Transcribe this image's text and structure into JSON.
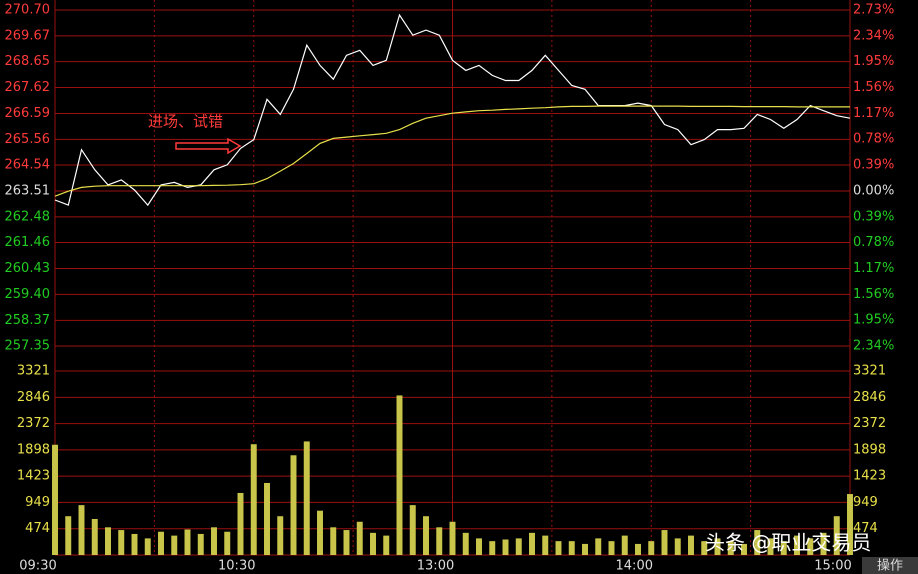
{
  "chart_data": [
    {
      "type": "line",
      "ylim": [
        257.35,
        270.7
      ],
      "yticks": [
        {
          "value": 270.7,
          "label": "270.70"
        },
        269.67,
        268.65,
        267.62,
        266.59,
        265.56,
        264.54,
        263.51,
        262.48,
        261.46,
        {
          "value": 260.43,
          "label": "260.43"
        },
        {
          "value": 259.4,
          "label": "259.40"
        },
        258.37,
        257.35
      ],
      "y2lim": [
        -2.34,
        2.73
      ],
      "y2ticks": [
        {
          "value": 2.73,
          "label": "2.73%"
        },
        {
          "value": 2.34,
          "label": "2.34%"
        },
        {
          "value": 1.95,
          "label": "1.95%"
        },
        {
          "value": 1.56,
          "label": "1.56%"
        },
        {
          "value": 1.17,
          "label": "1.17%"
        },
        {
          "value": 0.78,
          "label": "0.78%"
        },
        {
          "value": 0.39,
          "label": "0.39%"
        },
        {
          "value": 0,
          "label": "0.00%"
        },
        {
          "value": -0.39,
          "label": "0.39%"
        },
        {
          "value": -0.78,
          "label": "0.78%"
        },
        {
          "value": -1.17,
          "label": "1.17%"
        },
        {
          "value": -1.56,
          "label": "1.56%"
        },
        {
          "value": -1.95,
          "label": "1.95%"
        },
        {
          "value": -2.34,
          "label": "2.34%"
        }
      ],
      "up_color": "#ff3b3b",
      "down_color": "#22cc22",
      "flat_color": "#dddddd",
      "annotation": "进场、试错",
      "series": [
        {
          "color": "#ffffff",
          "values": [
            263.15,
            262.95,
            265.15,
            264.35,
            263.75,
            263.95,
            263.55,
            262.95,
            263.75,
            263.85,
            263.65,
            263.75,
            264.35,
            264.55,
            265.2,
            265.55,
            267.15,
            266.55,
            267.55,
            269.3,
            268.5,
            267.95,
            268.9,
            269.1,
            268.5,
            268.7,
            270.5,
            269.7,
            269.9,
            269.7,
            268.7,
            268.3,
            268.5,
            268.1,
            267.9,
            267.9,
            268.3,
            268.9,
            268.3,
            267.7,
            267.55,
            266.9,
            266.9,
            266.9,
            267.0,
            266.9,
            266.15,
            265.95,
            265.35,
            265.55,
            265.95,
            265.95,
            266.0,
            266.55,
            266.35,
            266.0,
            266.35,
            266.9,
            266.7,
            266.5,
            266.4
          ]
        },
        {
          "color": "#e8e04a",
          "values": [
            263.3,
            263.5,
            263.65,
            263.7,
            263.72,
            263.72,
            263.72,
            263.72,
            263.72,
            263.72,
            263.72,
            263.72,
            263.73,
            263.74,
            263.76,
            263.8,
            264.0,
            264.3,
            264.6,
            265.0,
            265.4,
            265.6,
            265.65,
            265.7,
            265.75,
            265.8,
            265.95,
            266.2,
            266.4,
            266.5,
            266.6,
            266.65,
            266.7,
            266.72,
            266.75,
            266.77,
            266.8,
            266.82,
            266.85,
            266.87,
            266.87,
            266.88,
            266.88,
            266.88,
            266.88,
            266.88,
            266.88,
            266.88,
            266.87,
            266.87,
            266.87,
            266.87,
            266.86,
            266.86,
            266.86,
            266.86,
            266.85,
            266.85,
            266.85,
            266.85,
            266.85
          ]
        }
      ]
    },
    {
      "type": "bar",
      "ylim": [
        0,
        3321
      ],
      "yticks": [
        3321,
        2846,
        2372,
        1898,
        1423,
        949,
        474
      ],
      "color": "#c9c54a",
      "tick_color": "#e8e04a",
      "categories": [
        "09:30",
        null,
        null,
        null,
        null,
        null,
        null,
        null,
        null,
        null,
        null,
        null,
        null,
        null,
        null,
        "10:30",
        null,
        null,
        null,
        null,
        null,
        null,
        null,
        null,
        null,
        null,
        null,
        null,
        null,
        null,
        "13:00",
        null,
        null,
        null,
        null,
        null,
        null,
        null,
        null,
        null,
        null,
        null,
        null,
        null,
        null,
        "14:00",
        null,
        null,
        null,
        null,
        null,
        null,
        null,
        null,
        null,
        null,
        null,
        null,
        null,
        null,
        "15:00"
      ],
      "values": [
        1990,
        700,
        900,
        650,
        500,
        450,
        380,
        300,
        420,
        350,
        460,
        380,
        500,
        420,
        1120,
        2000,
        1300,
        700,
        1800,
        2050,
        800,
        500,
        450,
        600,
        400,
        350,
        2880,
        900,
        700,
        500,
        600,
        400,
        300,
        250,
        280,
        300,
        400,
        350,
        250,
        250,
        200,
        300,
        250,
        350,
        200,
        250,
        450,
        300,
        350,
        250,
        300,
        250,
        200,
        450,
        300,
        250,
        350,
        300,
        400,
        700,
        1100
      ]
    }
  ],
  "watermark": "头条 @职业交易员",
  "button": "操作"
}
